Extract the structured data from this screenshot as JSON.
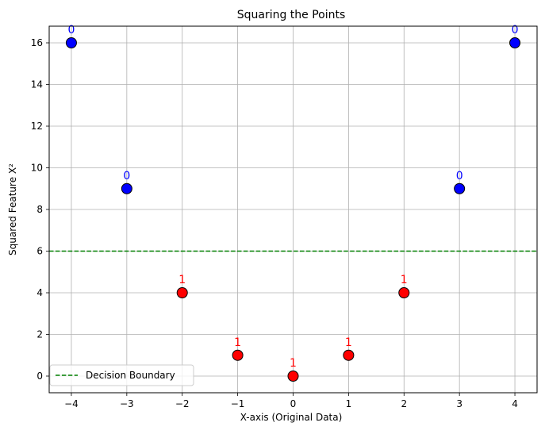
{
  "chart_data": {
    "type": "scatter",
    "title": "Squaring the Points",
    "xlabel": "X-axis (Original Data)",
    "ylabel": "Squared Feature X²",
    "xlim": [
      -4.4,
      4.4
    ],
    "ylim": [
      -0.8,
      16.8
    ],
    "xticks": [
      -4,
      -3,
      -2,
      -1,
      0,
      1,
      2,
      3,
      4
    ],
    "yticks": [
      0,
      2,
      4,
      6,
      8,
      10,
      12,
      14,
      16
    ],
    "grid": true,
    "points": [
      {
        "x": -4,
        "y": 16,
        "label": "0",
        "color": "#0000ff",
        "text_color": "#0000ff"
      },
      {
        "x": -3,
        "y": 9,
        "label": "0",
        "color": "#0000ff",
        "text_color": "#0000ff"
      },
      {
        "x": -2,
        "y": 4,
        "label": "1",
        "color": "#ff0000",
        "text_color": "#ff0000"
      },
      {
        "x": -1,
        "y": 1,
        "label": "1",
        "color": "#ff0000",
        "text_color": "#ff0000"
      },
      {
        "x": 0,
        "y": 0,
        "label": "1",
        "color": "#ff0000",
        "text_color": "#ff0000"
      },
      {
        "x": 1,
        "y": 1,
        "label": "1",
        "color": "#ff0000",
        "text_color": "#ff0000"
      },
      {
        "x": 2,
        "y": 4,
        "label": "1",
        "color": "#ff0000",
        "text_color": "#ff0000"
      },
      {
        "x": 3,
        "y": 9,
        "label": "0",
        "color": "#0000ff",
        "text_color": "#0000ff"
      },
      {
        "x": 4,
        "y": 16,
        "label": "0",
        "color": "#0000ff",
        "text_color": "#0000ff"
      }
    ],
    "boundary": {
      "y": 6,
      "name": "Decision Boundary",
      "color": "#008000",
      "style": "dashed"
    },
    "legend": {
      "position": "bottom-left",
      "entries": [
        "Decision Boundary"
      ]
    }
  }
}
